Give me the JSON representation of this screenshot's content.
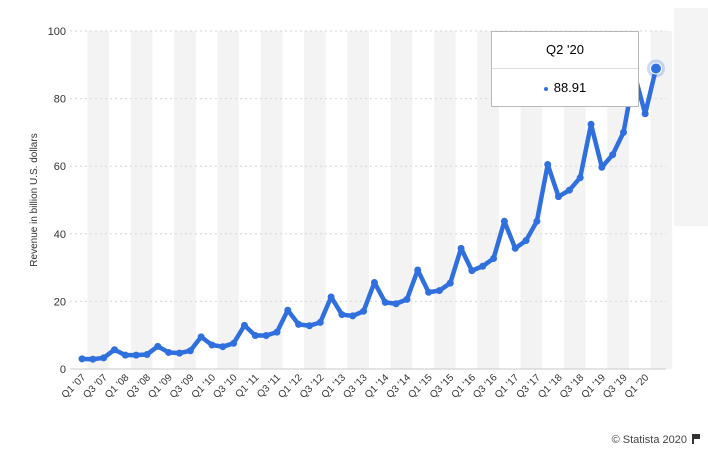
{
  "chart_data": {
    "type": "line",
    "title": "",
    "xlabel": "",
    "ylabel": "Revenue in billion U.S. dollars",
    "ylim": [
      0,
      100
    ],
    "yticks": [
      0,
      20,
      40,
      60,
      80,
      100
    ],
    "grid": true,
    "series_color": "#2f6fde",
    "categories": [
      "Q1 '07",
      "Q2 '07",
      "Q3 '07",
      "Q4 '07",
      "Q1 '08",
      "Q2 '08",
      "Q3 '08",
      "Q4 '08",
      "Q1 '09",
      "Q2 '09",
      "Q3 '09",
      "Q4 '09",
      "Q1 '10",
      "Q2 '10",
      "Q3 '10",
      "Q4 '10",
      "Q1 '11",
      "Q2 '11",
      "Q3 '11",
      "Q4 '11",
      "Q1 '12",
      "Q2 '12",
      "Q3 '12",
      "Q4 '12",
      "Q1 '13",
      "Q2 '13",
      "Q3 '13",
      "Q4 '13",
      "Q1 '14",
      "Q2 '14",
      "Q3 '14",
      "Q4 '14",
      "Q1 '15",
      "Q2 '15",
      "Q3 '15",
      "Q4 '15",
      "Q1 '16",
      "Q2 '16",
      "Q3 '16",
      "Q4 '16",
      "Q1 '17",
      "Q2 '17",
      "Q3 '17",
      "Q4 '17",
      "Q1 '18",
      "Q2 '18",
      "Q3 '18",
      "Q4 '18",
      "Q1 '19",
      "Q2 '19",
      "Q3 '19",
      "Q4 '19",
      "Q1 '20",
      "Q2 '20"
    ],
    "tick_labels": [
      "Q1 '07",
      "Q3 '07",
      "Q1 '08",
      "Q3 '08",
      "Q1 '09",
      "Q3 '09",
      "Q1 '10",
      "Q3 '10",
      "Q1 '11",
      "Q3 '11",
      "Q1 '12",
      "Q3 '12",
      "Q1 '13",
      "Q3 '13",
      "Q1 '14",
      "Q3 '14",
      "Q1 '15",
      "Q3 '15",
      "Q1 '16",
      "Q3 '16",
      "Q1 '17",
      "Q3 '17",
      "Q1 '18",
      "Q3 '18",
      "Q1 '19",
      "Q3 '19",
      "Q1 '20"
    ],
    "values": [
      3.0,
      2.9,
      3.3,
      5.7,
      4.1,
      4.1,
      4.3,
      6.7,
      4.9,
      4.7,
      5.4,
      9.5,
      7.1,
      6.6,
      7.6,
      12.9,
      9.9,
      9.9,
      10.9,
      17.4,
      13.2,
      12.8,
      13.8,
      21.3,
      16.1,
      15.7,
      17.1,
      25.6,
      19.7,
      19.3,
      20.6,
      29.3,
      22.7,
      23.2,
      25.4,
      35.7,
      29.1,
      30.4,
      32.7,
      43.7,
      35.7,
      38.0,
      43.7,
      60.5,
      51.0,
      52.9,
      56.6,
      72.4,
      59.7,
      63.4,
      70.0,
      87.4,
      75.5,
      88.91
    ],
    "highlight_index": 53
  },
  "tooltip": {
    "label": "Q2 '20",
    "value": "88.91"
  },
  "credit": "© Statista 2020"
}
